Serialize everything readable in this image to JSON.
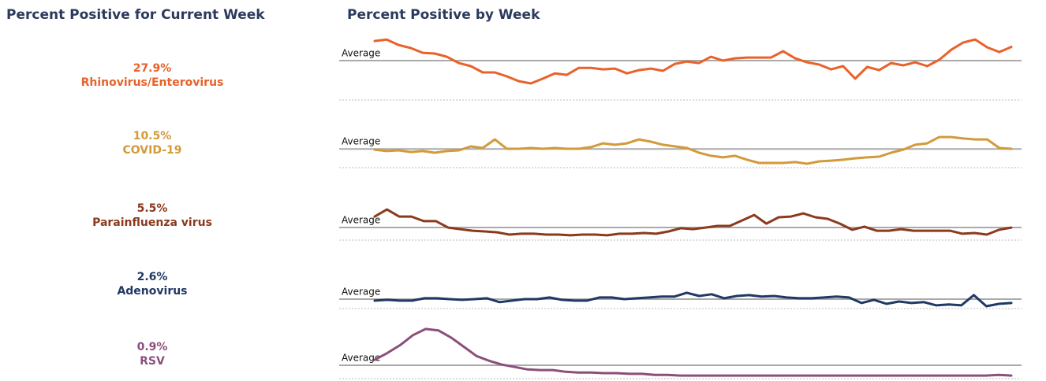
{
  "left_title": "Percent Positive for Current Week",
  "right_title": "Percent Positive by Week",
  "chart_data": [
    {
      "type": "line",
      "name": "Rhinovirus/Enterovirus",
      "color": "#e8622a",
      "current": {
        "value": 27.9,
        "label": "27.9%"
      },
      "average_label": "Average",
      "average": 20.7,
      "ylim": [
        0,
        36
      ],
      "values": [
        31.0,
        31.8,
        28.9,
        27.3,
        24.8,
        24.4,
        22.7,
        19.4,
        17.8,
        14.5,
        14.5,
        12.4,
        9.9,
        8.7,
        11.2,
        14.0,
        13.2,
        16.9,
        16.9,
        16.1,
        16.5,
        14.0,
        15.7,
        16.5,
        15.3,
        19.0,
        20.2,
        19.4,
        22.7,
        20.7,
        21.9,
        22.3,
        22.3,
        22.3,
        25.6,
        21.9,
        19.8,
        18.6,
        16.1,
        17.8,
        11.2,
        17.4,
        15.7,
        19.4,
        18.2,
        19.8,
        17.8,
        21.1,
        26.4,
        30.2,
        31.8,
        27.7,
        25.2,
        27.9
      ]
    },
    {
      "type": "line",
      "name": "COVID-19",
      "color": "#d29a3a",
      "current": {
        "value": 10.5,
        "label": "10.5%"
      },
      "average_label": "Average",
      "average": 10.4,
      "ylim": [
        0,
        38
      ],
      "values": [
        10.0,
        9.2,
        9.6,
        8.7,
        9.2,
        8.3,
        9.2,
        9.6,
        11.8,
        10.9,
        15.7,
        10.5,
        10.5,
        10.9,
        10.5,
        10.9,
        10.5,
        10.5,
        11.4,
        13.5,
        12.7,
        13.5,
        15.7,
        14.4,
        12.7,
        11.8,
        10.9,
        8.3,
        6.6,
        5.7,
        6.6,
        4.4,
        2.6,
        2.6,
        2.6,
        3.1,
        2.2,
        3.5,
        3.9,
        4.4,
        5.2,
        5.7,
        6.1,
        8.3,
        10.0,
        12.7,
        13.5,
        17.0,
        17.0,
        16.2,
        15.7,
        15.7,
        10.9,
        10.5
      ]
    },
    {
      "type": "line",
      "name": "Parainfluenza virus",
      "color": "#8b3a1e",
      "current": {
        "value": 5.5,
        "label": "5.5%"
      },
      "average_label": "Average",
      "average": 5.5,
      "ylim": [
        0,
        30
      ],
      "values": [
        10.3,
        13.4,
        10.3,
        10.3,
        8.3,
        8.3,
        5.5,
        4.8,
        4.1,
        3.8,
        3.4,
        2.4,
        2.8,
        2.8,
        2.4,
        2.4,
        2.1,
        2.4,
        2.4,
        2.1,
        2.8,
        2.8,
        3.1,
        2.8,
        3.8,
        5.2,
        4.8,
        5.5,
        6.2,
        6.2,
        8.6,
        11.0,
        7.2,
        10.0,
        10.3,
        11.7,
        10.0,
        9.3,
        7.2,
        4.5,
        5.9,
        4.1,
        4.1,
        4.8,
        4.1,
        4.1,
        4.1,
        4.1,
        2.8,
        3.1,
        2.4,
        4.5,
        5.5
      ]
    },
    {
      "type": "line",
      "name": "Adenovirus",
      "color": "#1f3864",
      "current": {
        "value": 2.6,
        "label": "2.6%"
      },
      "average_label": "Average",
      "average": 4.4,
      "ylim": [
        0,
        32
      ],
      "values": [
        3.7,
        4.1,
        3.7,
        3.7,
        4.8,
        4.8,
        4.4,
        4.1,
        4.4,
        4.8,
        3.0,
        3.7,
        4.4,
        4.4,
        5.2,
        4.1,
        3.7,
        3.7,
        5.2,
        5.2,
        4.4,
        4.8,
        5.2,
        5.6,
        5.6,
        7.4,
        5.9,
        6.7,
        4.8,
        5.9,
        6.3,
        5.6,
        5.9,
        5.2,
        4.8,
        4.8,
        5.2,
        5.6,
        5.2,
        2.6,
        4.1,
        2.2,
        3.3,
        2.6,
        3.0,
        1.5,
        1.9,
        1.5,
        6.3,
        1.1,
        2.2,
        2.6
      ]
    },
    {
      "type": "line",
      "name": "RSV",
      "color": "#8c4f7a",
      "current": {
        "value": 0.9,
        "label": "0.9%"
      },
      "average_label": "Average",
      "average": 3.9,
      "ylim": [
        0,
        20
      ],
      "values": [
        5.5,
        7.5,
        9.8,
        12.7,
        14.5,
        14.1,
        12.0,
        9.3,
        6.6,
        5.2,
        4.1,
        3.4,
        2.7,
        2.5,
        2.5,
        2.0,
        1.8,
        1.8,
        1.6,
        1.6,
        1.4,
        1.4,
        1.1,
        1.1,
        0.9,
        0.9,
        0.9,
        0.9,
        0.9,
        0.9,
        0.9,
        0.9,
        0.9,
        0.9,
        0.9,
        0.9,
        0.9,
        0.9,
        0.9,
        0.9,
        0.9,
        0.9,
        0.9,
        0.9,
        0.9,
        0.9,
        0.9,
        0.9,
        0.9,
        1.1,
        0.9
      ]
    }
  ]
}
